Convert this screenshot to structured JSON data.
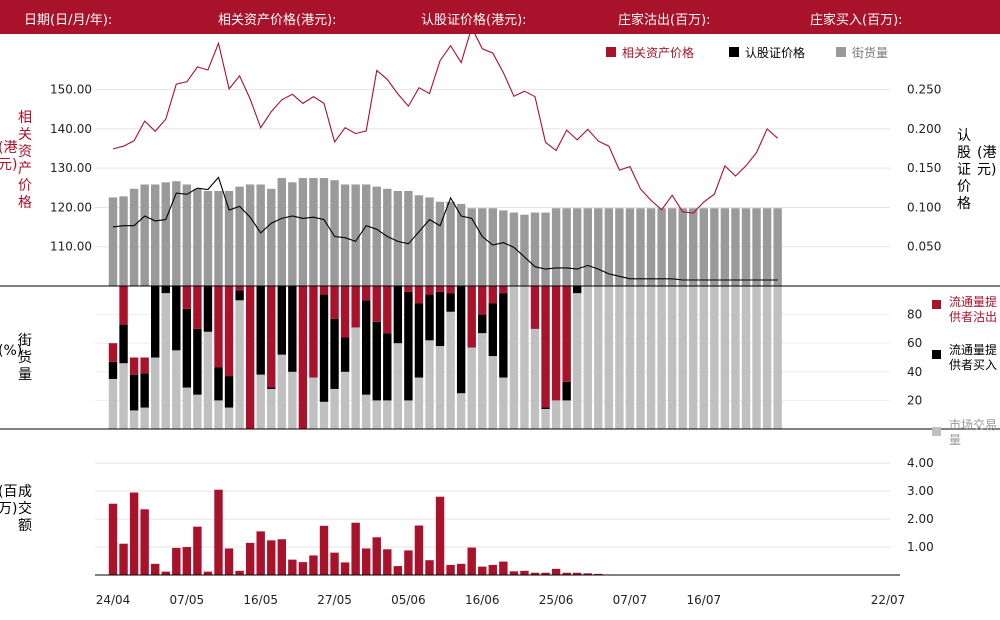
{
  "header": {
    "date_label": "日期(日/月/年):",
    "underlying_label": "相关资产价格(港元):",
    "warrant_label": "认股证价格(港元):",
    "mm_sell_label": "庄家沽出(百万):",
    "mm_buy_label": "庄家买入(百万):"
  },
  "legend_top": [
    {
      "name": "相关资产价格",
      "color": "#a8122a"
    },
    {
      "name": "认股证价格",
      "color": "#000000"
    },
    {
      "name": "街货量",
      "color": "#9a9a9a"
    }
  ],
  "axis_labels": {
    "top_left": "相关资产价格",
    "top_left_unit": "港元",
    "top_right": "认股证价格",
    "top_right_unit": "港元",
    "mid_left": "街货量",
    "mid_left_unit": "%",
    "bottom_left": "成交额",
    "bottom_left_unit": "百万"
  },
  "legend_mid": [
    {
      "name": "流通量提供者沽出",
      "color": "#a8122a"
    },
    {
      "name": "流通量提供者买入",
      "color": "#000000"
    },
    {
      "name": "市场交易量",
      "color": "#c0c0c0"
    }
  ],
  "colors": {
    "underlying": "#a8122a",
    "warrant": "#000000",
    "outstanding": "#9a9a9a",
    "market": "#c0c0c0",
    "sell": "#a8122a",
    "buy": "#000000",
    "turnover": "#a8122a"
  },
  "chart_data": {
    "x_ticks": [
      "24/04",
      "07/05",
      "16/05",
      "27/05",
      "05/06",
      "16/06",
      "25/06",
      "07/07",
      "16/07",
      "22/07"
    ],
    "x_tick_index": [
      0,
      7,
      14,
      21,
      28,
      35,
      42,
      49,
      56,
      60
    ],
    "top": {
      "type": "line+bar",
      "left_axis": {
        "ticks": [
          110,
          120,
          130,
          140,
          150
        ],
        "labels": [
          "110.00",
          "120.00",
          "130.00",
          "140.00",
          "150.00"
        ],
        "range": [
          100,
          155
        ]
      },
      "right_axis": {
        "ticks": [
          0.05,
          0.1,
          0.15,
          0.2,
          0.25
        ],
        "labels": [
          "0.050",
          "0.100",
          "0.150",
          "0.200",
          "0.250"
        ],
        "range": [
          0,
          0.275
        ]
      },
      "underlying": [
        134.9,
        135.6,
        137,
        142,
        139.4,
        142.5,
        151.4,
        152,
        155.8,
        155,
        161.8,
        150.2,
        153.5,
        147.6,
        140.3,
        144.4,
        147.4,
        148.8,
        146.5,
        148.2,
        146.5,
        136.7,
        140.3,
        138.8,
        139.5,
        154.9,
        152.6,
        148.9,
        145.8,
        150.5,
        149,
        157.4,
        161.2,
        156.9,
        165.8,
        160.4,
        159.3,
        154.3,
        148.3,
        149.6,
        148.2,
        136.6,
        134.5,
        139.7,
        137.2,
        139.9,
        136.9,
        135.6,
        129.5,
        130.4,
        124.7,
        121.8,
        119.4,
        123.1,
        118.9,
        118.6,
        121.4,
        123.4,
        130.6,
        128,
        130.6,
        134,
        140,
        137.6
      ],
      "warrant": [
        0.0753,
        0.0768,
        0.0768,
        0.0891,
        0.0829,
        0.0845,
        0.1183,
        0.1168,
        0.1245,
        0.1229,
        0.1383,
        0.0968,
        0.1014,
        0.0876,
        0.0676,
        0.0799,
        0.0861,
        0.0891,
        0.0861,
        0.0876,
        0.0845,
        0.063,
        0.0615,
        0.0568,
        0.0769,
        0.0722,
        0.063,
        0.0568,
        0.0537,
        0.0691,
        0.0845,
        0.0768,
        0.1122,
        0.0891,
        0.0861,
        0.063,
        0.0522,
        0.0553,
        0.0492,
        0.0369,
        0.0246,
        0.0215,
        0.0231,
        0.0231,
        0.0215,
        0.0262,
        0.0215,
        0.0154,
        0.0123,
        0.0092,
        0.0092,
        0.0092,
        0.0092,
        0.0092,
        0.0077,
        0.0077,
        0.0077,
        0.0077,
        0.0077,
        0.0077,
        0.0077,
        0.0077,
        0.0077,
        0.0077
      ],
      "outstanding_pct": [
        41,
        41.5,
        45,
        47,
        47,
        48,
        48.5,
        47,
        45,
        44,
        44,
        44,
        46,
        47,
        47,
        45,
        50,
        48,
        50,
        50,
        50,
        49,
        47,
        47,
        47,
        46,
        45,
        44,
        44,
        42,
        41,
        39,
        39,
        38,
        36,
        36,
        36,
        35,
        34,
        33,
        34,
        34,
        36,
        36,
        36,
        36,
        36,
        36,
        36,
        36,
        36,
        36,
        36,
        36,
        36,
        36,
        36,
        36,
        36,
        36,
        36,
        36,
        36,
        36
      ]
    },
    "middle": {
      "type": "stacked-bar",
      "ticks": [
        20,
        40,
        60,
        80
      ],
      "range": [
        0,
        100
      ],
      "segments": [
        [
          35,
          47,
          60
        ],
        [
          46,
          73,
          100
        ],
        [
          13,
          38,
          50
        ],
        [
          15,
          39,
          50
        ],
        [
          50,
          100,
          100
        ],
        [
          95,
          100,
          100
        ],
        [
          55,
          100,
          100
        ],
        [
          29,
          84,
          100
        ],
        [
          24,
          70,
          100
        ],
        [
          68,
          100,
          100
        ],
        [
          20,
          43,
          100
        ],
        [
          15,
          37,
          100
        ],
        [
          90,
          97,
          100
        ],
        [
          0,
          0,
          100
        ],
        [
          38,
          100,
          100
        ],
        [
          28,
          29,
          100
        ],
        [
          52,
          100,
          100
        ],
        [
          40,
          100,
          100
        ],
        [
          0,
          0,
          100
        ],
        [
          36,
          36,
          100
        ],
        [
          19,
          94,
          100
        ],
        [
          28,
          77,
          100
        ],
        [
          40,
          64,
          100
        ],
        [
          71,
          71,
          100
        ],
        [
          24,
          90,
          100
        ],
        [
          20,
          75,
          100
        ],
        [
          20,
          67,
          100
        ],
        [
          60,
          100,
          100
        ],
        [
          20,
          96,
          100
        ],
        [
          36,
          88,
          100
        ],
        [
          62,
          94,
          100
        ],
        [
          58,
          96,
          100
        ],
        [
          82,
          95,
          100
        ],
        [
          25,
          100,
          100
        ],
        [
          57,
          57,
          100
        ],
        [
          67,
          80,
          100
        ],
        [
          51,
          88,
          100
        ],
        [
          36,
          95,
          100
        ],
        [
          100,
          100,
          100
        ],
        [
          100,
          100,
          100
        ],
        [
          70,
          70,
          100
        ],
        [
          14,
          15,
          100
        ],
        [
          20,
          20,
          100
        ],
        [
          20,
          33,
          100
        ],
        [
          95,
          100,
          100
        ],
        [
          100,
          100,
          100
        ],
        [
          100,
          100,
          100
        ],
        [
          100,
          100,
          100
        ],
        [
          100,
          100,
          100
        ],
        [
          100,
          100,
          100
        ],
        [
          100,
          100,
          100
        ],
        [
          100,
          100,
          100
        ],
        [
          100,
          100,
          100
        ],
        [
          100,
          100,
          100
        ],
        [
          100,
          100,
          100
        ],
        [
          100,
          100,
          100
        ],
        [
          100,
          100,
          100
        ],
        [
          100,
          100,
          100
        ],
        [
          100,
          100,
          100
        ],
        [
          100,
          100,
          100
        ],
        [
          100,
          100,
          100
        ],
        [
          100,
          100,
          100
        ],
        [
          100,
          100,
          100
        ],
        [
          100,
          100,
          100
        ]
      ]
    },
    "bottom": {
      "type": "bar",
      "ticks": [
        1,
        2,
        3,
        4
      ],
      "labels": [
        "1.00",
        "2.00",
        "3.00",
        "4.00"
      ],
      "range": [
        0,
        4.4
      ],
      "turnover": [
        2.55,
        1.12,
        2.95,
        2.35,
        0.4,
        0.12,
        0.97,
        1.0,
        1.73,
        0.12,
        3.05,
        0.95,
        0.15,
        1.15,
        1.56,
        1.24,
        1.28,
        0.55,
        0.46,
        0.7,
        1.76,
        0.8,
        0.45,
        1.87,
        0.95,
        1.35,
        0.92,
        0.32,
        0.88,
        1.77,
        0.53,
        2.8,
        0.36,
        0.4,
        0.98,
        0.3,
        0.36,
        0.48,
        0.13,
        0.15,
        0.08,
        0.08,
        0.22,
        0.08,
        0.08,
        0.06,
        0.04,
        0,
        0,
        0,
        0,
        0,
        0,
        0,
        0,
        0,
        0,
        0,
        0,
        0,
        0,
        0,
        0,
        0
      ]
    }
  }
}
